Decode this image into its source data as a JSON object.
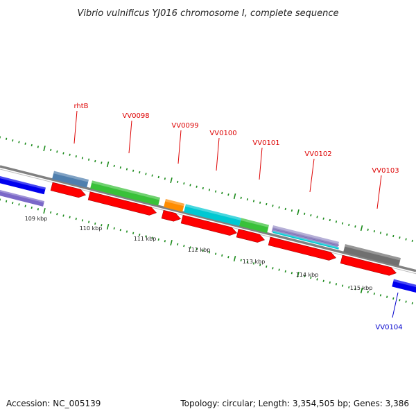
{
  "title": "Vibrio vulnificus YJ016 chromosome I, complete sequence",
  "footer": {
    "accession": "Accession: NC_005139",
    "summary": "Topology: circular; Length: 3,354,505 bp; Genes: 3,386"
  },
  "colors": {
    "backbone": "#808080",
    "ticks": "#1a8a1a",
    "cds": "#ff0000",
    "label_forward": "#dd0000",
    "label_reverse": "#0000cc"
  },
  "ruler": [
    "109 kbp",
    "110 kbp",
    "111 kbp",
    "112 kbp",
    "113 kbp",
    "114 kbp",
    "115 kbp"
  ],
  "genes": [
    {
      "label": "rhtB",
      "color": "#4f7fae",
      "strand": "forward"
    },
    {
      "label": "VV0098",
      "color": "#39c139",
      "strand": "forward"
    },
    {
      "label": "VV0099",
      "color": "#ff8c00",
      "strand": "forward"
    },
    {
      "label": "VV0100",
      "color": "#00c8d2",
      "strand": "forward"
    },
    {
      "label": "VV0101",
      "color": "#39c139",
      "strand": "forward"
    },
    {
      "label": "VV0102",
      "color": "#6a5aa8",
      "strand": "forward"
    },
    {
      "label": "VV0103",
      "color": "#707070",
      "strand": "forward"
    },
    {
      "label": "VV0104",
      "color": "#0000ee",
      "strand": "reverse"
    }
  ],
  "left_features": [
    {
      "name": "blue-feature",
      "color": "#0000ee"
    },
    {
      "name": "purple-feature",
      "color": "#7b68c8"
    }
  ]
}
